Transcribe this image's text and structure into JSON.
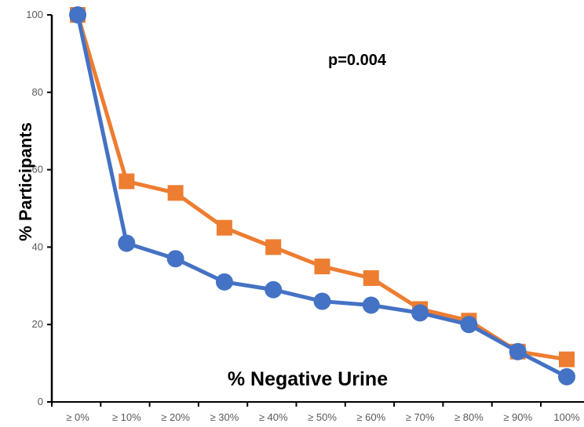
{
  "chart_data": {
    "type": "line",
    "title": "",
    "xlabel": "% Negative Urine",
    "ylabel": "% Participants",
    "annotation": "p=0.004",
    "categories": [
      "≥ 0%",
      "≥ 10%",
      "≥ 20%",
      "≥ 30%",
      "≥ 40%",
      "≥ 50%",
      "≥ 60%",
      "≥ 70%",
      "≥ 80%",
      "≥ 90%",
      "100%"
    ],
    "ylim": [
      0,
      100
    ],
    "yticks": [
      "0",
      "20",
      "40",
      "60",
      "80",
      "100"
    ],
    "grid": false,
    "legend": "none",
    "series": [
      {
        "color": "#ED7D31",
        "marker": "square",
        "values": [
          100,
          57,
          54,
          45,
          40,
          35,
          32,
          24,
          21,
          13,
          11
        ]
      },
      {
        "color": "#4472C4",
        "marker": "circle",
        "values": [
          100,
          41,
          37,
          31,
          29,
          26,
          25,
          23,
          20,
          13,
          6.5
        ]
      }
    ]
  }
}
